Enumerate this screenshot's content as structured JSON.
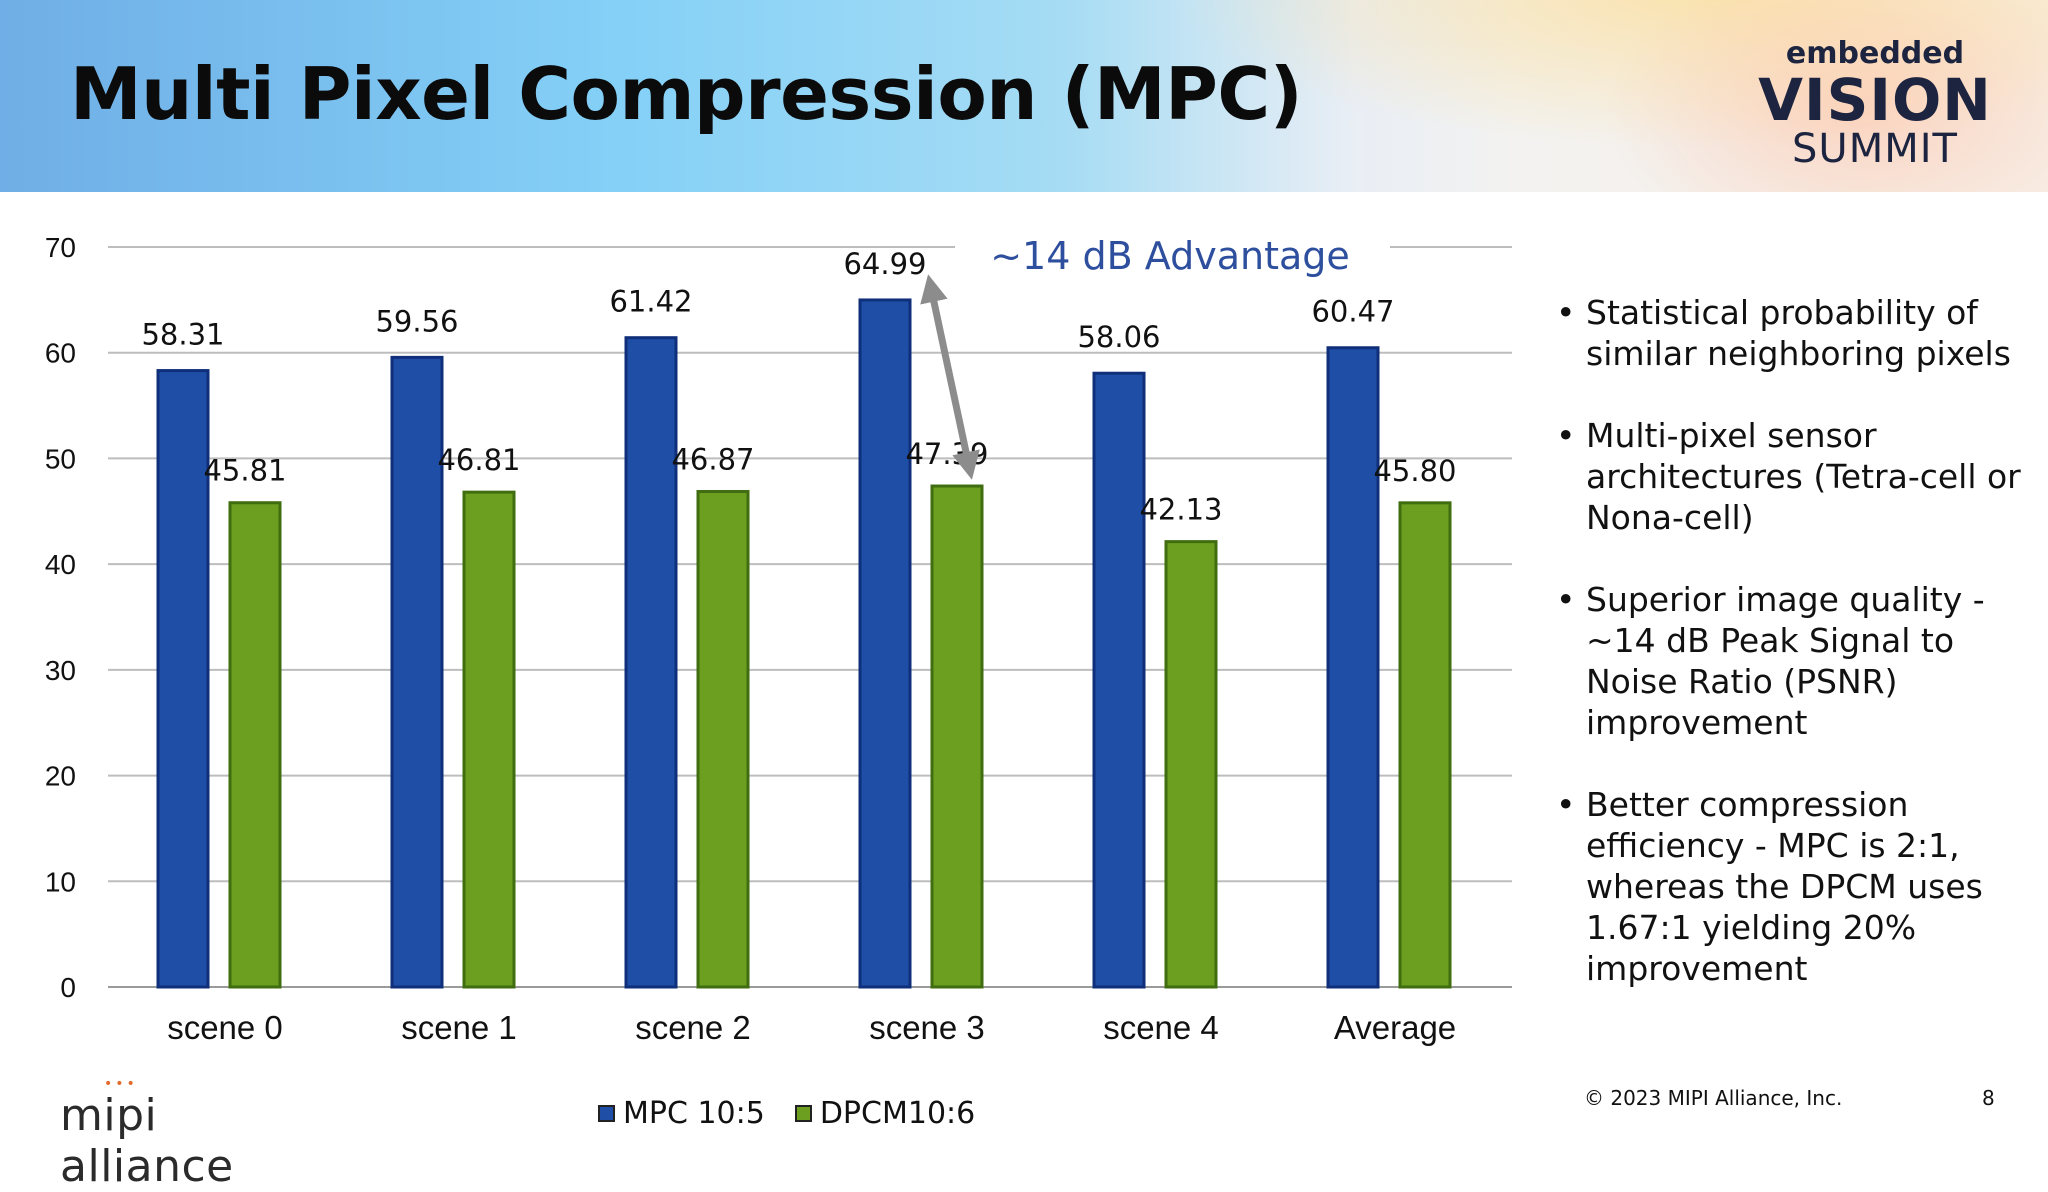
{
  "slide": {
    "title": "Multi Pixel Compression (MPC)",
    "page_number": "8",
    "copyright": "© 2023 MIPI Alliance, Inc."
  },
  "logo_summit": {
    "line1": "embedded",
    "line2": "VISION",
    "line3": "SUMMIT"
  },
  "logo_mipi": {
    "text": "mipi alliance"
  },
  "bullets": [
    "Statistical probability of similar neighboring pixels",
    "Multi-pixel sensor architectures (Tetra-cell or Nona-cell)",
    "Superior image quality - ~14 dB Peak Signal to Noise Ratio (PSNR) improvement",
    "Better compression efficiency - MPC is 2:1, whereas the DPCM uses 1.67:1 yielding 20% improvement"
  ],
  "chart_data": {
    "type": "bar",
    "categories": [
      "scene 0",
      "scene 1",
      "scene 2",
      "scene 3",
      "scene 4",
      "Average"
    ],
    "series": [
      {
        "name": "MPC 10:5",
        "color": "#1f4ea6",
        "values": [
          58.31,
          59.56,
          61.42,
          64.99,
          58.06,
          60.47
        ],
        "labels": [
          "58.31",
          "59.56",
          "61.42",
          "64.99",
          "58.06",
          "60.47"
        ]
      },
      {
        "name": "DPCM10:6",
        "color": "#6c9e1f",
        "values": [
          45.81,
          46.81,
          46.87,
          47.39,
          42.13,
          45.8
        ],
        "labels": [
          "45.81",
          "46.81",
          "46.87",
          "47.39",
          "42.13",
          "45.80"
        ]
      }
    ],
    "ylim": [
      0,
      70
    ],
    "yticks": [
      0,
      10,
      20,
      30,
      40,
      50,
      60,
      70
    ],
    "grid": true,
    "legend_position": "bottom",
    "annotation": {
      "text": "~14 dB Advantage",
      "category": "scene 3",
      "from": 64.99,
      "to": 47.39
    }
  }
}
